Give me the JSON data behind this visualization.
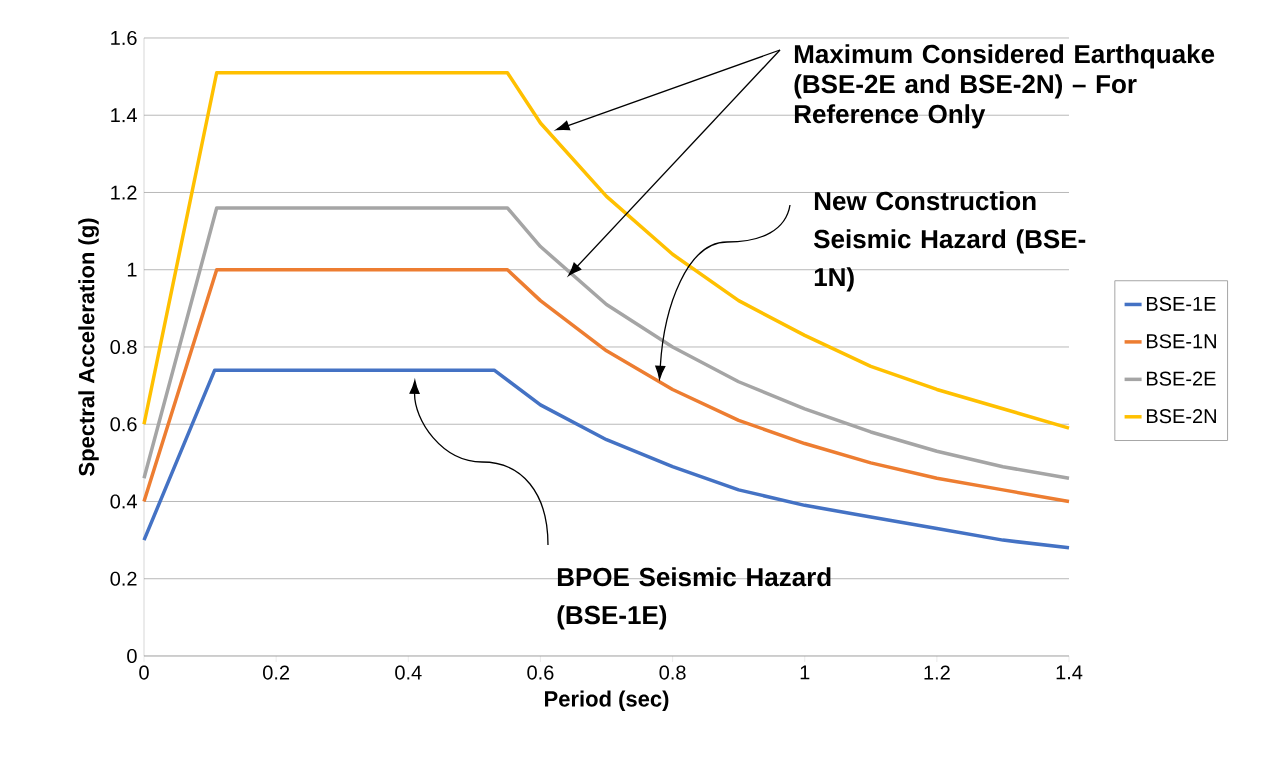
{
  "chart_data": {
    "type": "line",
    "xlabel": "Period (sec)",
    "ylabel": "Spectral Acceleration (g)",
    "xlim": [
      0,
      1.4
    ],
    "ylim": [
      0,
      1.6
    ],
    "xticks": [
      0,
      0.2,
      0.4,
      0.6,
      0.8,
      1,
      1.2,
      1.4
    ],
    "yticks": [
      0,
      0.2,
      0.4,
      0.6,
      0.8,
      1,
      1.2,
      1.4,
      1.6
    ],
    "grid": "y",
    "legend": "right",
    "marker": "none",
    "line_style": "solid",
    "series": [
      {
        "name": "BSE-1E",
        "color": "#4472c4",
        "x": [
          0,
          0.107,
          0.53,
          0.6,
          0.7,
          0.8,
          0.9,
          1.0,
          1.1,
          1.2,
          1.3,
          1.4
        ],
        "values": [
          0.3,
          0.74,
          0.74,
          0.65,
          0.56,
          0.49,
          0.43,
          0.39,
          0.36,
          0.33,
          0.3,
          0.28
        ]
      },
      {
        "name": "BSE-1N",
        "color": "#ed7d31",
        "x": [
          0,
          0.11,
          0.55,
          0.6,
          0.7,
          0.8,
          0.9,
          1.0,
          1.1,
          1.2,
          1.3,
          1.4
        ],
        "values": [
          0.4,
          1.0,
          1.0,
          0.92,
          0.79,
          0.69,
          0.61,
          0.55,
          0.5,
          0.46,
          0.43,
          0.4
        ]
      },
      {
        "name": "BSE-2E",
        "color": "#a5a5a5",
        "x": [
          0,
          0.11,
          0.55,
          0.6,
          0.7,
          0.8,
          0.9,
          1.0,
          1.1,
          1.2,
          1.3,
          1.4
        ],
        "values": [
          0.46,
          1.16,
          1.16,
          1.06,
          0.91,
          0.8,
          0.71,
          0.64,
          0.58,
          0.53,
          0.49,
          0.46
        ]
      },
      {
        "name": "BSE-2N",
        "color": "#ffc000",
        "x": [
          0,
          0.11,
          0.55,
          0.6,
          0.7,
          0.8,
          0.9,
          1.0,
          1.1,
          1.2,
          1.3,
          1.4
        ],
        "values": [
          0.6,
          1.51,
          1.51,
          1.38,
          1.19,
          1.04,
          0.92,
          0.83,
          0.75,
          0.69,
          0.64,
          0.59
        ]
      }
    ],
    "annotations": [
      "Maximum Considered Earthquake (BSE-2E and BSE-2N) – For Reference Only",
      "New Construction Seismic Hazard (BSE-1N)",
      "BPOE Seismic Hazard (BSE-1E)"
    ]
  }
}
